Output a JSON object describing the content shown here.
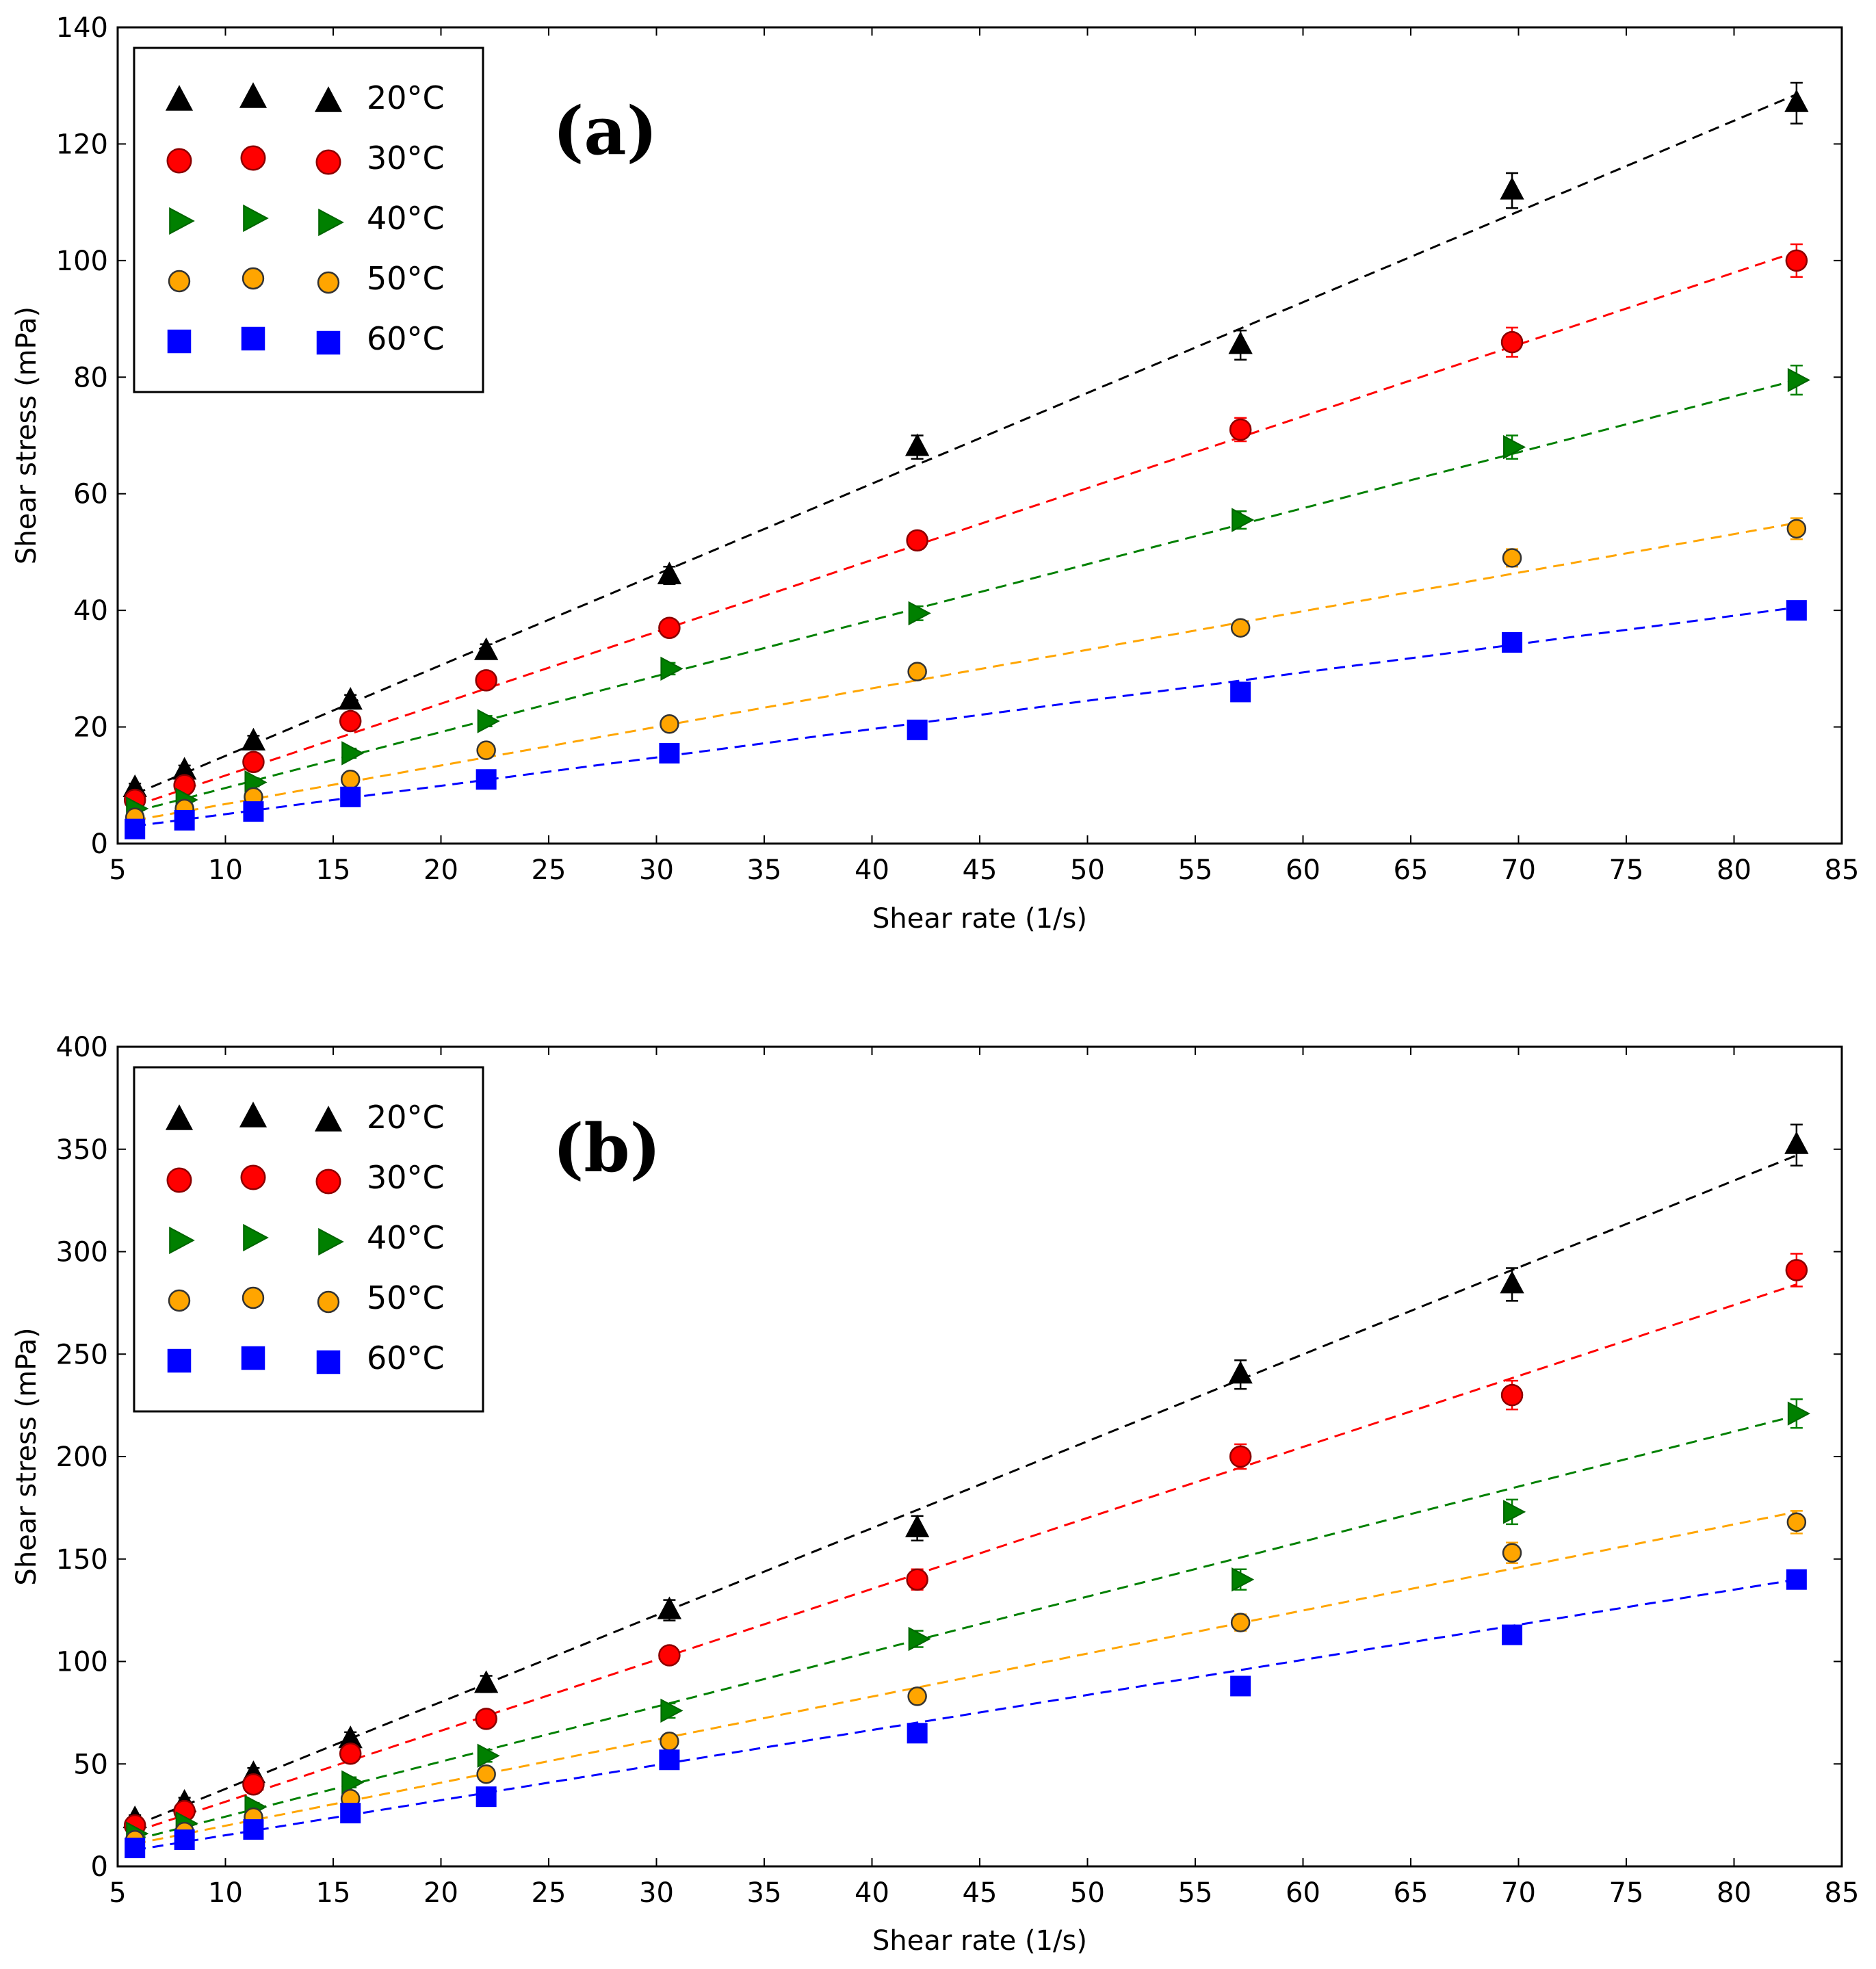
{
  "chart_data": [
    {
      "type": "scatter",
      "panel_label": "(a)",
      "xlabel": "Shear rate (1/s)",
      "ylabel": "Shear stress (mPa)",
      "xlim": [
        5,
        85
      ],
      "ylim": [
        0,
        140
      ],
      "xticks": [
        5,
        10,
        15,
        20,
        25,
        30,
        35,
        40,
        45,
        50,
        55,
        60,
        65,
        70,
        75,
        80,
        85
      ],
      "yticks": [
        0,
        20,
        40,
        60,
        80,
        100,
        120,
        140
      ],
      "grid": false,
      "legend_position": "top-left",
      "x": [
        5.8,
        8.1,
        11.3,
        15.8,
        22.1,
        30.6,
        42.1,
        57.1,
        69.7,
        82.9
      ],
      "series": [
        {
          "name": "20°C",
          "marker": "triangle-up",
          "color": "#000000",
          "values": [
            9.5,
            12.5,
            17.5,
            24.5,
            33,
            46,
            68,
            85.5,
            112,
            127
          ],
          "errors": [
            0.8,
            0.9,
            1.0,
            1.0,
            1.2,
            1.5,
            2.0,
            2.5,
            3.0,
            3.5
          ],
          "fit": [
            8.5,
            128.5
          ]
        },
        {
          "name": "30°C",
          "marker": "circle",
          "color": "#ff0000",
          "values": [
            7.5,
            10,
            14,
            21,
            28,
            37,
            52,
            71,
            86,
            100
          ],
          "errors": [
            0.6,
            0.7,
            0.8,
            0.9,
            1.0,
            1.2,
            1.5,
            2.0,
            2.5,
            2.8
          ],
          "fit": [
            6.5,
            101.5
          ]
        },
        {
          "name": "40°C",
          "marker": "triangle-right",
          "color": "#008000",
          "values": [
            6,
            7.5,
            10.5,
            15.5,
            21,
            30,
            39.5,
            55.5,
            68,
            79.5
          ],
          "errors": [
            0.5,
            0.6,
            0.7,
            0.8,
            0.9,
            1.0,
            1.2,
            1.5,
            2.0,
            2.5
          ],
          "fit": [
            5.5,
            79.5
          ]
        },
        {
          "name": "50°C",
          "marker": "circle-small",
          "color": "#ffa500",
          "values": [
            4.5,
            6,
            8,
            11,
            16,
            20.5,
            29.5,
            37,
            49,
            54
          ],
          "errors": [
            0.4,
            0.5,
            0.6,
            0.7,
            0.8,
            0.9,
            1.0,
            1.2,
            1.5,
            1.8
          ],
          "fit": [
            4.0,
            55.0
          ]
        },
        {
          "name": "60°C",
          "marker": "square",
          "color": "#0000ff",
          "values": [
            2.5,
            4,
            5.5,
            8,
            11,
            15.5,
            19.5,
            26,
            34.5,
            40
          ],
          "errors": [
            0.3,
            0.4,
            0.5,
            0.6,
            0.7,
            0.8,
            0.9,
            1.0,
            1.2,
            1.4
          ],
          "fit": [
            3.0,
            40.5
          ]
        }
      ]
    },
    {
      "type": "scatter",
      "panel_label": "(b)",
      "xlabel": "Shear rate (1/s)",
      "ylabel": "Shear stress (mPa)",
      "xlim": [
        5,
        85
      ],
      "ylim": [
        0,
        400
      ],
      "xticks": [
        5,
        10,
        15,
        20,
        25,
        30,
        35,
        40,
        45,
        50,
        55,
        60,
        65,
        70,
        75,
        80,
        85
      ],
      "yticks": [
        0,
        50,
        100,
        150,
        200,
        250,
        300,
        350,
        400
      ],
      "grid": false,
      "legend_position": "top-left",
      "x": [
        5.8,
        8.1,
        11.3,
        15.8,
        22.1,
        30.6,
        42.1,
        57.1,
        69.7,
        82.9
      ],
      "series": [
        {
          "name": "20°C",
          "marker": "triangle-up",
          "color": "#000000",
          "values": [
            23,
            31,
            45,
            62,
            89,
            125,
            165,
            240,
            284,
            352
          ],
          "errors": [
            2,
            2.5,
            3,
            3.5,
            4,
            5,
            6,
            7,
            8,
            10
          ],
          "fit": [
            20,
            347
          ]
        },
        {
          "name": "30°C",
          "marker": "circle",
          "color": "#ff0000",
          "values": [
            20,
            27,
            40,
            55,
            72,
            103,
            140,
            200,
            230,
            291
          ],
          "errors": [
            1.5,
            2,
            2.5,
            3,
            3.5,
            4,
            5,
            6,
            7,
            8
          ],
          "fit": [
            17,
            284
          ]
        },
        {
          "name": "40°C",
          "marker": "triangle-right",
          "color": "#008000",
          "values": [
            16,
            21,
            29,
            41,
            54,
            76,
            111,
            140,
            173,
            221
          ],
          "errors": [
            1.2,
            1.5,
            2,
            2.5,
            3,
            3.5,
            4,
            5,
            6,
            7
          ],
          "fit": [
            13,
            220
          ]
        },
        {
          "name": "50°C",
          "marker": "circle-small",
          "color": "#ffa500",
          "values": [
            13,
            17,
            24,
            33,
            45,
            61,
            83,
            119,
            153,
            168
          ],
          "errors": [
            1,
            1.2,
            1.5,
            2,
            2.5,
            3,
            3.5,
            4,
            5,
            5.5
          ],
          "fit": [
            11,
            173
          ]
        },
        {
          "name": "60°C",
          "marker": "square",
          "color": "#0000ff",
          "values": [
            9,
            13,
            18,
            26,
            34,
            52,
            65,
            88,
            113,
            140
          ],
          "errors": [
            0.8,
            1,
            1.2,
            1.5,
            2,
            2.5,
            3,
            3.5,
            4,
            4.5
          ],
          "fit": [
            8,
            140
          ]
        }
      ]
    }
  ]
}
